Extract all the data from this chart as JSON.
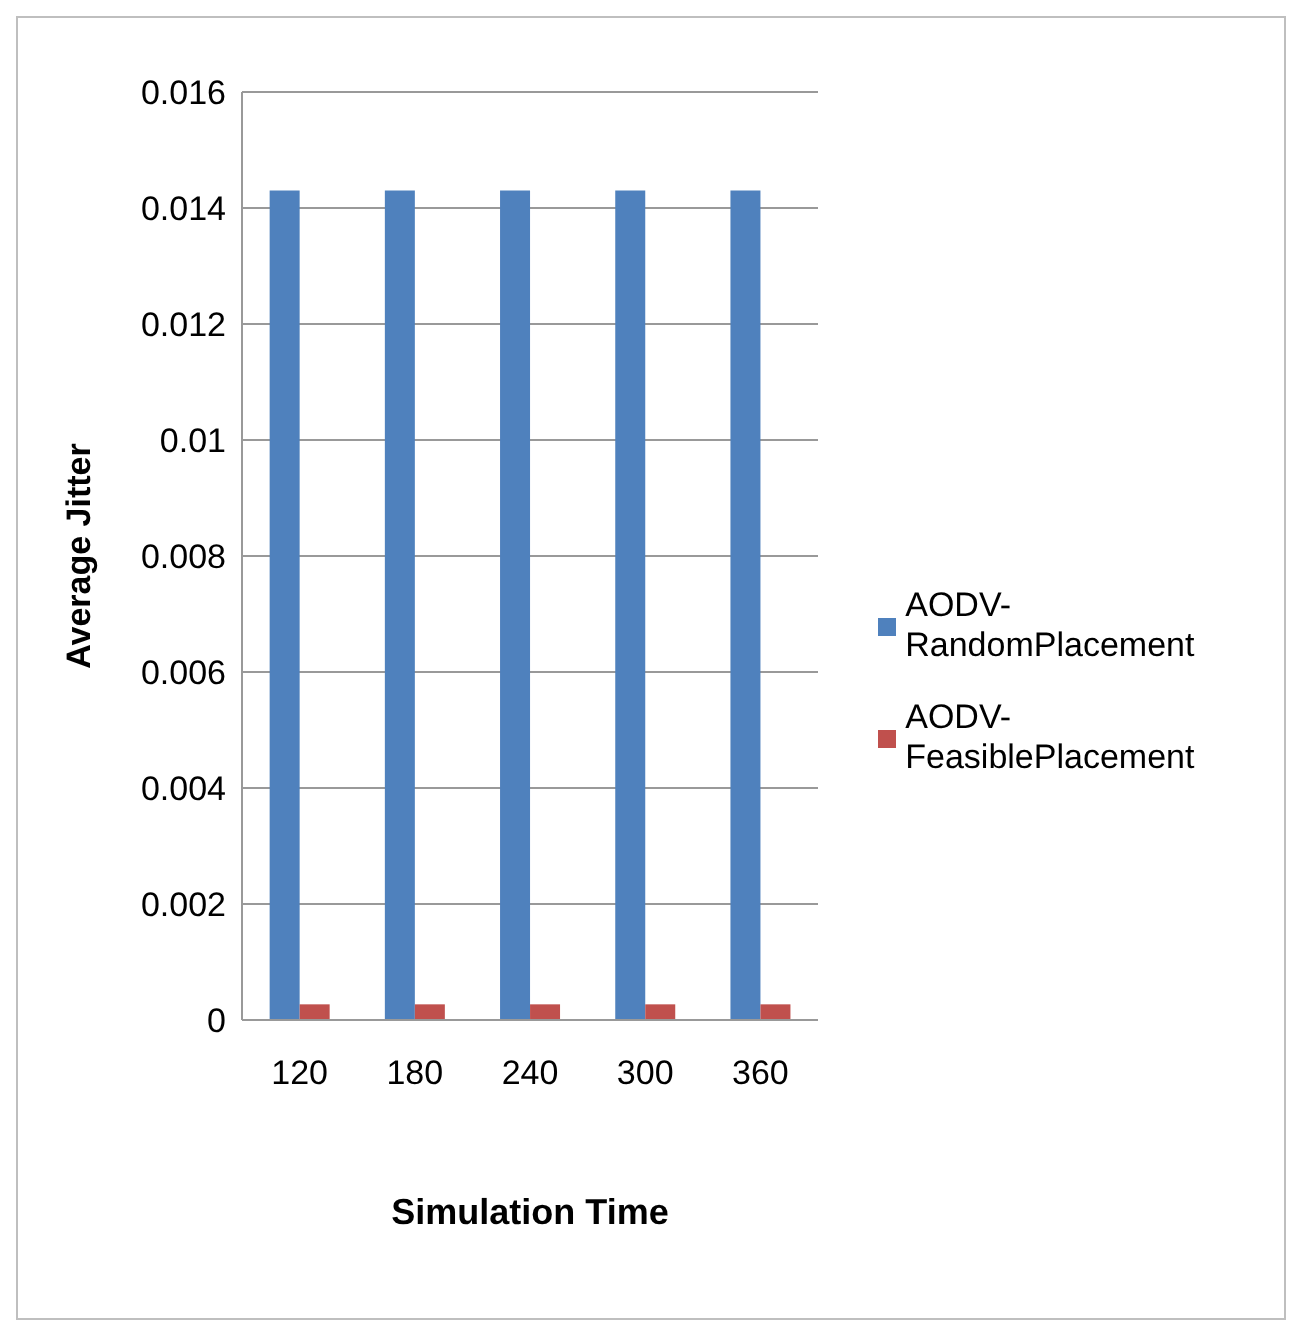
{
  "chart_data": {
    "type": "bar",
    "ylabel": "Average Jitter",
    "xlabel": "Simulation Time",
    "categories": [
      "120",
      "180",
      "240",
      "300",
      "360"
    ],
    "series": [
      {
        "name": "AODV-RandomPlacement",
        "color": "#4f81bd",
        "values": [
          0.0143,
          0.0143,
          0.0143,
          0.0143,
          0.0143
        ]
      },
      {
        "name": "AODV-FeasiblePlacement",
        "color": "#c0504d",
        "values": [
          0.00027,
          0.00027,
          0.00027,
          0.00027,
          0.00027
        ]
      }
    ],
    "ylim": [
      0,
      0.016
    ],
    "yticks": [
      0,
      0.002,
      0.004,
      0.006,
      0.008,
      0.01,
      0.012,
      0.014,
      0.016
    ],
    "grid": "y",
    "legend": "right"
  }
}
